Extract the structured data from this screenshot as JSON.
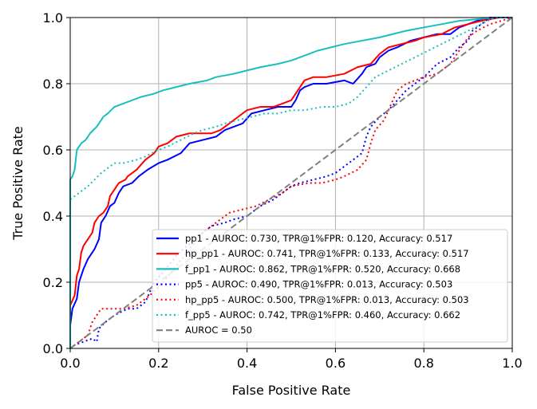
{
  "chart_data": {
    "type": "line",
    "title": "",
    "xlabel": "False Positive Rate",
    "ylabel": "True Positive Rate",
    "xlim": [
      0.0,
      1.0
    ],
    "ylim": [
      0.0,
      1.0
    ],
    "grid": true,
    "legend_position": "lower-right",
    "x_ticks": [
      {
        "value": 0.0,
        "label": "0.0"
      },
      {
        "value": 0.2,
        "label": "0.2"
      },
      {
        "value": 0.4,
        "label": "0.4"
      },
      {
        "value": 0.6,
        "label": "0.6"
      },
      {
        "value": 0.8,
        "label": "0.8"
      },
      {
        "value": 1.0,
        "label": "1.0"
      }
    ],
    "y_ticks": [
      {
        "value": 0.0,
        "label": "0.0"
      },
      {
        "value": 0.2,
        "label": "0.2"
      },
      {
        "value": 0.4,
        "label": "0.4"
      },
      {
        "value": 0.6,
        "label": "0.6"
      },
      {
        "value": 0.8,
        "label": "0.8"
      },
      {
        "value": 1.0,
        "label": "1.0"
      }
    ],
    "series": [
      {
        "key": "pp1",
        "name": "pp1 - AUROC: 0.730, TPR@1%FPR: 0.120, Accuracy: 0.517",
        "color": "#0000ff",
        "dash": "solid",
        "points": [
          [
            0,
            0
          ],
          [
            0,
            0.07
          ],
          [
            0.005,
            0.12
          ],
          [
            0.015,
            0.15
          ],
          [
            0.02,
            0.2
          ],
          [
            0.03,
            0.24
          ],
          [
            0.04,
            0.27
          ],
          [
            0.055,
            0.3
          ],
          [
            0.065,
            0.33
          ],
          [
            0.07,
            0.38
          ],
          [
            0.08,
            0.4
          ],
          [
            0.09,
            0.43
          ],
          [
            0.1,
            0.44
          ],
          [
            0.11,
            0.47
          ],
          [
            0.12,
            0.49
          ],
          [
            0.14,
            0.5
          ],
          [
            0.155,
            0.52
          ],
          [
            0.175,
            0.54
          ],
          [
            0.2,
            0.56
          ],
          [
            0.22,
            0.57
          ],
          [
            0.25,
            0.59
          ],
          [
            0.27,
            0.62
          ],
          [
            0.3,
            0.63
          ],
          [
            0.33,
            0.64
          ],
          [
            0.35,
            0.66
          ],
          [
            0.37,
            0.67
          ],
          [
            0.39,
            0.68
          ],
          [
            0.41,
            0.71
          ],
          [
            0.44,
            0.72
          ],
          [
            0.47,
            0.73
          ],
          [
            0.5,
            0.73
          ],
          [
            0.51,
            0.75
          ],
          [
            0.52,
            0.78
          ],
          [
            0.53,
            0.79
          ],
          [
            0.55,
            0.8
          ],
          [
            0.58,
            0.8
          ],
          [
            0.62,
            0.81
          ],
          [
            0.64,
            0.8
          ],
          [
            0.66,
            0.83
          ],
          [
            0.67,
            0.85
          ],
          [
            0.69,
            0.86
          ],
          [
            0.7,
            0.88
          ],
          [
            0.72,
            0.9
          ],
          [
            0.74,
            0.91
          ],
          [
            0.77,
            0.93
          ],
          [
            0.8,
            0.94
          ],
          [
            0.83,
            0.95
          ],
          [
            0.86,
            0.95
          ],
          [
            0.88,
            0.97
          ],
          [
            0.9,
            0.98
          ],
          [
            0.92,
            0.99
          ],
          [
            0.95,
            1.0
          ],
          [
            1.0,
            1.0
          ]
        ]
      },
      {
        "key": "hp_pp1",
        "name": "hp_pp1 - AUROC: 0.741, TPR@1%FPR: 0.133, Accuracy: 0.517",
        "color": "#ff0000",
        "dash": "solid",
        "points": [
          [
            0,
            0
          ],
          [
            0,
            0.13
          ],
          [
            0.01,
            0.16
          ],
          [
            0.015,
            0.22
          ],
          [
            0.02,
            0.24
          ],
          [
            0.025,
            0.29
          ],
          [
            0.03,
            0.31
          ],
          [
            0.04,
            0.33
          ],
          [
            0.05,
            0.35
          ],
          [
            0.055,
            0.38
          ],
          [
            0.065,
            0.4
          ],
          [
            0.075,
            0.41
          ],
          [
            0.085,
            0.43
          ],
          [
            0.09,
            0.46
          ],
          [
            0.1,
            0.48
          ],
          [
            0.11,
            0.5
          ],
          [
            0.125,
            0.51
          ],
          [
            0.13,
            0.52
          ],
          [
            0.15,
            0.54
          ],
          [
            0.17,
            0.57
          ],
          [
            0.19,
            0.59
          ],
          [
            0.2,
            0.61
          ],
          [
            0.22,
            0.62
          ],
          [
            0.24,
            0.64
          ],
          [
            0.27,
            0.65
          ],
          [
            0.3,
            0.65
          ],
          [
            0.32,
            0.65
          ],
          [
            0.34,
            0.66
          ],
          [
            0.36,
            0.68
          ],
          [
            0.38,
            0.7
          ],
          [
            0.4,
            0.72
          ],
          [
            0.43,
            0.73
          ],
          [
            0.46,
            0.73
          ],
          [
            0.48,
            0.74
          ],
          [
            0.5,
            0.75
          ],
          [
            0.52,
            0.79
          ],
          [
            0.53,
            0.81
          ],
          [
            0.55,
            0.82
          ],
          [
            0.58,
            0.82
          ],
          [
            0.62,
            0.83
          ],
          [
            0.65,
            0.85
          ],
          [
            0.68,
            0.86
          ],
          [
            0.7,
            0.89
          ],
          [
            0.72,
            0.91
          ],
          [
            0.75,
            0.92
          ],
          [
            0.78,
            0.93
          ],
          [
            0.8,
            0.94
          ],
          [
            0.84,
            0.95
          ],
          [
            0.87,
            0.97
          ],
          [
            0.9,
            0.98
          ],
          [
            0.93,
            0.99
          ],
          [
            0.97,
            1.0
          ],
          [
            1.0,
            1.0
          ]
        ]
      },
      {
        "key": "f_pp1",
        "name": "f_pp1 - AUROC: 0.862, TPR@1%FPR: 0.520, Accuracy: 0.668",
        "color": "#17bfbf",
        "dash": "solid",
        "points": [
          [
            0,
            0
          ],
          [
            0,
            0.51
          ],
          [
            0.005,
            0.52
          ],
          [
            0.01,
            0.54
          ],
          [
            0.015,
            0.6
          ],
          [
            0.02,
            0.61
          ],
          [
            0.025,
            0.62
          ],
          [
            0.035,
            0.63
          ],
          [
            0.045,
            0.65
          ],
          [
            0.06,
            0.67
          ],
          [
            0.07,
            0.69
          ],
          [
            0.075,
            0.7
          ],
          [
            0.085,
            0.71
          ],
          [
            0.1,
            0.73
          ],
          [
            0.12,
            0.74
          ],
          [
            0.14,
            0.75
          ],
          [
            0.16,
            0.76
          ],
          [
            0.19,
            0.77
          ],
          [
            0.21,
            0.78
          ],
          [
            0.24,
            0.79
          ],
          [
            0.27,
            0.8
          ],
          [
            0.31,
            0.81
          ],
          [
            0.33,
            0.82
          ],
          [
            0.37,
            0.83
          ],
          [
            0.4,
            0.84
          ],
          [
            0.43,
            0.85
          ],
          [
            0.47,
            0.86
          ],
          [
            0.5,
            0.87
          ],
          [
            0.52,
            0.88
          ],
          [
            0.54,
            0.89
          ],
          [
            0.56,
            0.9
          ],
          [
            0.59,
            0.91
          ],
          [
            0.62,
            0.92
          ],
          [
            0.66,
            0.93
          ],
          [
            0.7,
            0.94
          ],
          [
            0.73,
            0.95
          ],
          [
            0.76,
            0.96
          ],
          [
            0.8,
            0.97
          ],
          [
            0.84,
            0.98
          ],
          [
            0.88,
            0.99
          ],
          [
            0.92,
            0.995
          ],
          [
            0.96,
            1.0
          ],
          [
            1.0,
            1.0
          ]
        ]
      },
      {
        "key": "pp5",
        "name": "pp5 - AUROC: 0.490, TPR@1%FPR: 0.013, Accuracy: 0.503",
        "color": "#0000ff",
        "dash": "dotted",
        "points": [
          [
            0,
            0
          ],
          [
            0.01,
            0.01
          ],
          [
            0.03,
            0.02
          ],
          [
            0.05,
            0.03
          ],
          [
            0.06,
            0.02
          ],
          [
            0.065,
            0.06
          ],
          [
            0.08,
            0.08
          ],
          [
            0.1,
            0.1
          ],
          [
            0.13,
            0.12
          ],
          [
            0.15,
            0.12
          ],
          [
            0.17,
            0.14
          ],
          [
            0.18,
            0.17
          ],
          [
            0.19,
            0.2
          ],
          [
            0.21,
            0.23
          ],
          [
            0.24,
            0.28
          ],
          [
            0.28,
            0.33
          ],
          [
            0.32,
            0.37
          ],
          [
            0.35,
            0.38
          ],
          [
            0.37,
            0.39
          ],
          [
            0.4,
            0.4
          ],
          [
            0.43,
            0.43
          ],
          [
            0.46,
            0.45
          ],
          [
            0.48,
            0.47
          ],
          [
            0.5,
            0.49
          ],
          [
            0.52,
            0.5
          ],
          [
            0.55,
            0.51
          ],
          [
            0.58,
            0.52
          ],
          [
            0.6,
            0.53
          ],
          [
            0.62,
            0.55
          ],
          [
            0.64,
            0.57
          ],
          [
            0.66,
            0.59
          ],
          [
            0.67,
            0.64
          ],
          [
            0.68,
            0.67
          ],
          [
            0.7,
            0.7
          ],
          [
            0.72,
            0.72
          ],
          [
            0.74,
            0.75
          ],
          [
            0.76,
            0.78
          ],
          [
            0.78,
            0.8
          ],
          [
            0.8,
            0.82
          ],
          [
            0.83,
            0.86
          ],
          [
            0.86,
            0.88
          ],
          [
            0.88,
            0.91
          ],
          [
            0.9,
            0.93
          ],
          [
            0.91,
            0.96
          ],
          [
            0.93,
            0.98
          ],
          [
            0.95,
            1.0
          ],
          [
            1.0,
            1.0
          ]
        ]
      },
      {
        "key": "hp_pp5",
        "name": "hp_pp5 - AUROC: 0.500, TPR@1%FPR: 0.013, Accuracy: 0.503",
        "color": "#ff0000",
        "dash": "dotted",
        "points": [
          [
            0,
            0
          ],
          [
            0.01,
            0.01
          ],
          [
            0.02,
            0.02
          ],
          [
            0.04,
            0.04
          ],
          [
            0.05,
            0.08
          ],
          [
            0.07,
            0.12
          ],
          [
            0.09,
            0.12
          ],
          [
            0.12,
            0.12
          ],
          [
            0.15,
            0.13
          ],
          [
            0.18,
            0.16
          ],
          [
            0.21,
            0.2
          ],
          [
            0.24,
            0.25
          ],
          [
            0.27,
            0.3
          ],
          [
            0.3,
            0.35
          ],
          [
            0.33,
            0.38
          ],
          [
            0.36,
            0.41
          ],
          [
            0.39,
            0.42
          ],
          [
            0.42,
            0.43
          ],
          [
            0.45,
            0.45
          ],
          [
            0.48,
            0.47
          ],
          [
            0.5,
            0.49
          ],
          [
            0.54,
            0.5
          ],
          [
            0.57,
            0.5
          ],
          [
            0.6,
            0.51
          ],
          [
            0.62,
            0.52
          ],
          [
            0.65,
            0.54
          ],
          [
            0.67,
            0.57
          ],
          [
            0.68,
            0.62
          ],
          [
            0.69,
            0.66
          ],
          [
            0.71,
            0.69
          ],
          [
            0.72,
            0.72
          ],
          [
            0.73,
            0.75
          ],
          [
            0.74,
            0.78
          ],
          [
            0.76,
            0.8
          ],
          [
            0.78,
            0.81
          ],
          [
            0.8,
            0.82
          ],
          [
            0.83,
            0.83
          ],
          [
            0.86,
            0.86
          ],
          [
            0.88,
            0.9
          ],
          [
            0.9,
            0.94
          ],
          [
            0.92,
            0.96
          ],
          [
            0.95,
            0.98
          ],
          [
            1.0,
            1.0
          ]
        ]
      },
      {
        "key": "f_pp5",
        "name": "f_pp5 - AUROC: 0.742, TPR@1%FPR: 0.460, Accuracy: 0.662",
        "color": "#17bfbf",
        "dash": "dotted",
        "points": [
          [
            0,
            0
          ],
          [
            0,
            0.45
          ],
          [
            0.01,
            0.46
          ],
          [
            0.02,
            0.47
          ],
          [
            0.04,
            0.49
          ],
          [
            0.07,
            0.53
          ],
          [
            0.09,
            0.55
          ],
          [
            0.1,
            0.56
          ],
          [
            0.12,
            0.56
          ],
          [
            0.15,
            0.57
          ],
          [
            0.17,
            0.58
          ],
          [
            0.2,
            0.6
          ],
          [
            0.22,
            0.61
          ],
          [
            0.25,
            0.63
          ],
          [
            0.28,
            0.65
          ],
          [
            0.3,
            0.66
          ],
          [
            0.33,
            0.67
          ],
          [
            0.35,
            0.68
          ],
          [
            0.38,
            0.69
          ],
          [
            0.41,
            0.7
          ],
          [
            0.44,
            0.71
          ],
          [
            0.47,
            0.71
          ],
          [
            0.5,
            0.72
          ],
          [
            0.53,
            0.72
          ],
          [
            0.57,
            0.73
          ],
          [
            0.6,
            0.73
          ],
          [
            0.63,
            0.74
          ],
          [
            0.65,
            0.76
          ],
          [
            0.67,
            0.79
          ],
          [
            0.69,
            0.82
          ],
          [
            0.72,
            0.84
          ],
          [
            0.75,
            0.86
          ],
          [
            0.78,
            0.88
          ],
          [
            0.81,
            0.9
          ],
          [
            0.84,
            0.92
          ],
          [
            0.87,
            0.94
          ],
          [
            0.9,
            0.96
          ],
          [
            0.93,
            0.98
          ],
          [
            0.96,
            1.0
          ],
          [
            1.0,
            1.0
          ]
        ]
      },
      {
        "key": "baseline",
        "name": "AUROC = 0.50",
        "color": "#808080",
        "dash": "dashed",
        "points": [
          [
            0,
            0
          ],
          [
            1,
            1
          ]
        ]
      }
    ]
  }
}
